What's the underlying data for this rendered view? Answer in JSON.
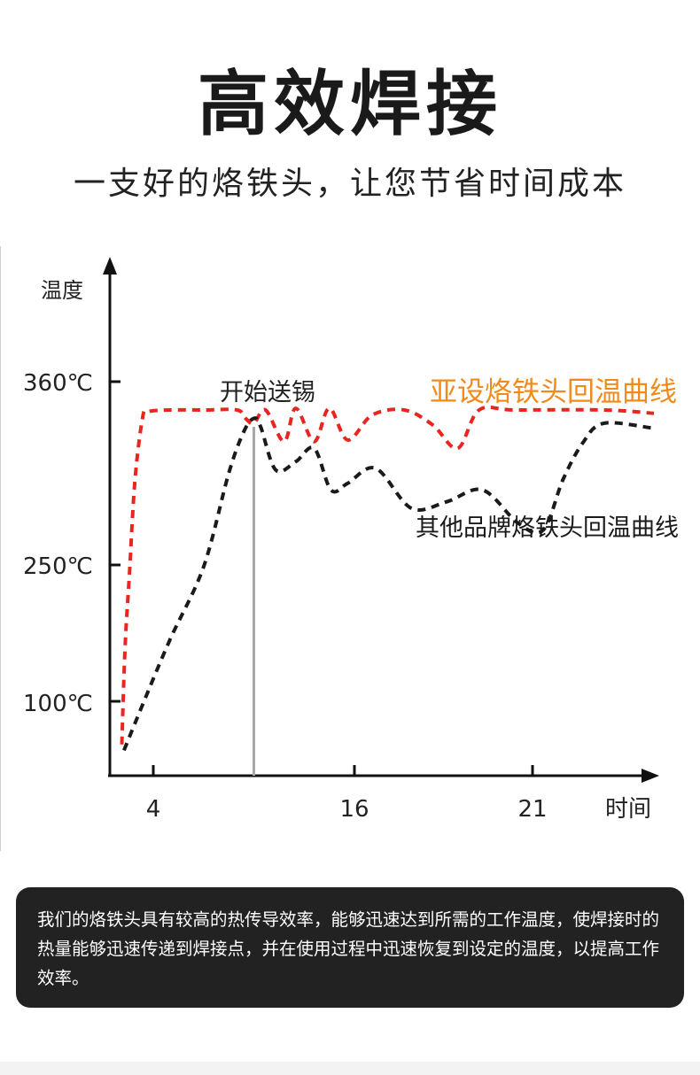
{
  "header": {
    "title": "高效焊接",
    "subtitle": "一支好的烙铁头，让您节省时间成本"
  },
  "chart_data": {
    "type": "line",
    "ylabel": "温度",
    "xlabel": "时间",
    "y_tick_labels": [
      "360℃",
      "250℃",
      "100℃"
    ],
    "x_ticks": [
      4,
      16,
      21
    ],
    "annotation": "开始送锡",
    "annotation_x": 10,
    "series": [
      {
        "name": "亚设烙铁头回温曲线",
        "color": "#e8251f",
        "label_color": "#f08a1c",
        "points": [
          [
            1.1,
            42
          ],
          [
            1.4,
            160
          ],
          [
            1.8,
            240
          ],
          [
            2.3,
            300
          ],
          [
            3,
            338
          ],
          [
            3.5,
            342
          ],
          [
            5,
            343
          ],
          [
            7,
            343
          ],
          [
            9,
            343
          ],
          [
            9.5,
            338
          ],
          [
            10,
            335
          ],
          [
            10.7,
            343
          ],
          [
            11.8,
            324
          ],
          [
            12.5,
            344
          ],
          [
            13.6,
            324
          ],
          [
            14.5,
            344
          ],
          [
            15.6,
            325
          ],
          [
            16.5,
            340
          ],
          [
            17.4,
            343
          ],
          [
            18.2,
            334
          ],
          [
            18.9,
            320
          ],
          [
            19.5,
            343
          ],
          [
            20.5,
            343
          ],
          [
            25,
            343
          ],
          [
            27.8,
            341
          ]
        ]
      },
      {
        "name": "其他品牌烙铁头回温曲线",
        "color": "#1a1a1a",
        "label_color": "#1a1a1a",
        "points": [
          [
            1.3,
            34
          ],
          [
            3,
            95
          ],
          [
            5,
            168
          ],
          [
            7,
            248
          ],
          [
            8.5,
            305
          ],
          [
            9.4,
            330
          ],
          [
            10,
            338
          ],
          [
            10.4,
            333
          ],
          [
            11.3,
            307
          ],
          [
            12.5,
            312
          ],
          [
            13.6,
            320
          ],
          [
            14.6,
            295
          ],
          [
            15.6,
            299
          ],
          [
            16.6,
            308
          ],
          [
            17.6,
            284
          ],
          [
            18.6,
            288
          ],
          [
            19.6,
            295
          ],
          [
            20.6,
            275
          ],
          [
            21.6,
            271
          ],
          [
            22.7,
            301
          ],
          [
            23.8,
            323
          ],
          [
            25,
            335
          ],
          [
            27.8,
            332
          ]
        ]
      }
    ]
  },
  "caption": {
    "text": "我们的烙铁头具有较高的热传导效率，能够迅速达到所需的工作温度，使焊接时的热量能够迅速传递到焊接点，并在使用过程中迅速恢复到设定的温度，以提高工作效率。"
  }
}
